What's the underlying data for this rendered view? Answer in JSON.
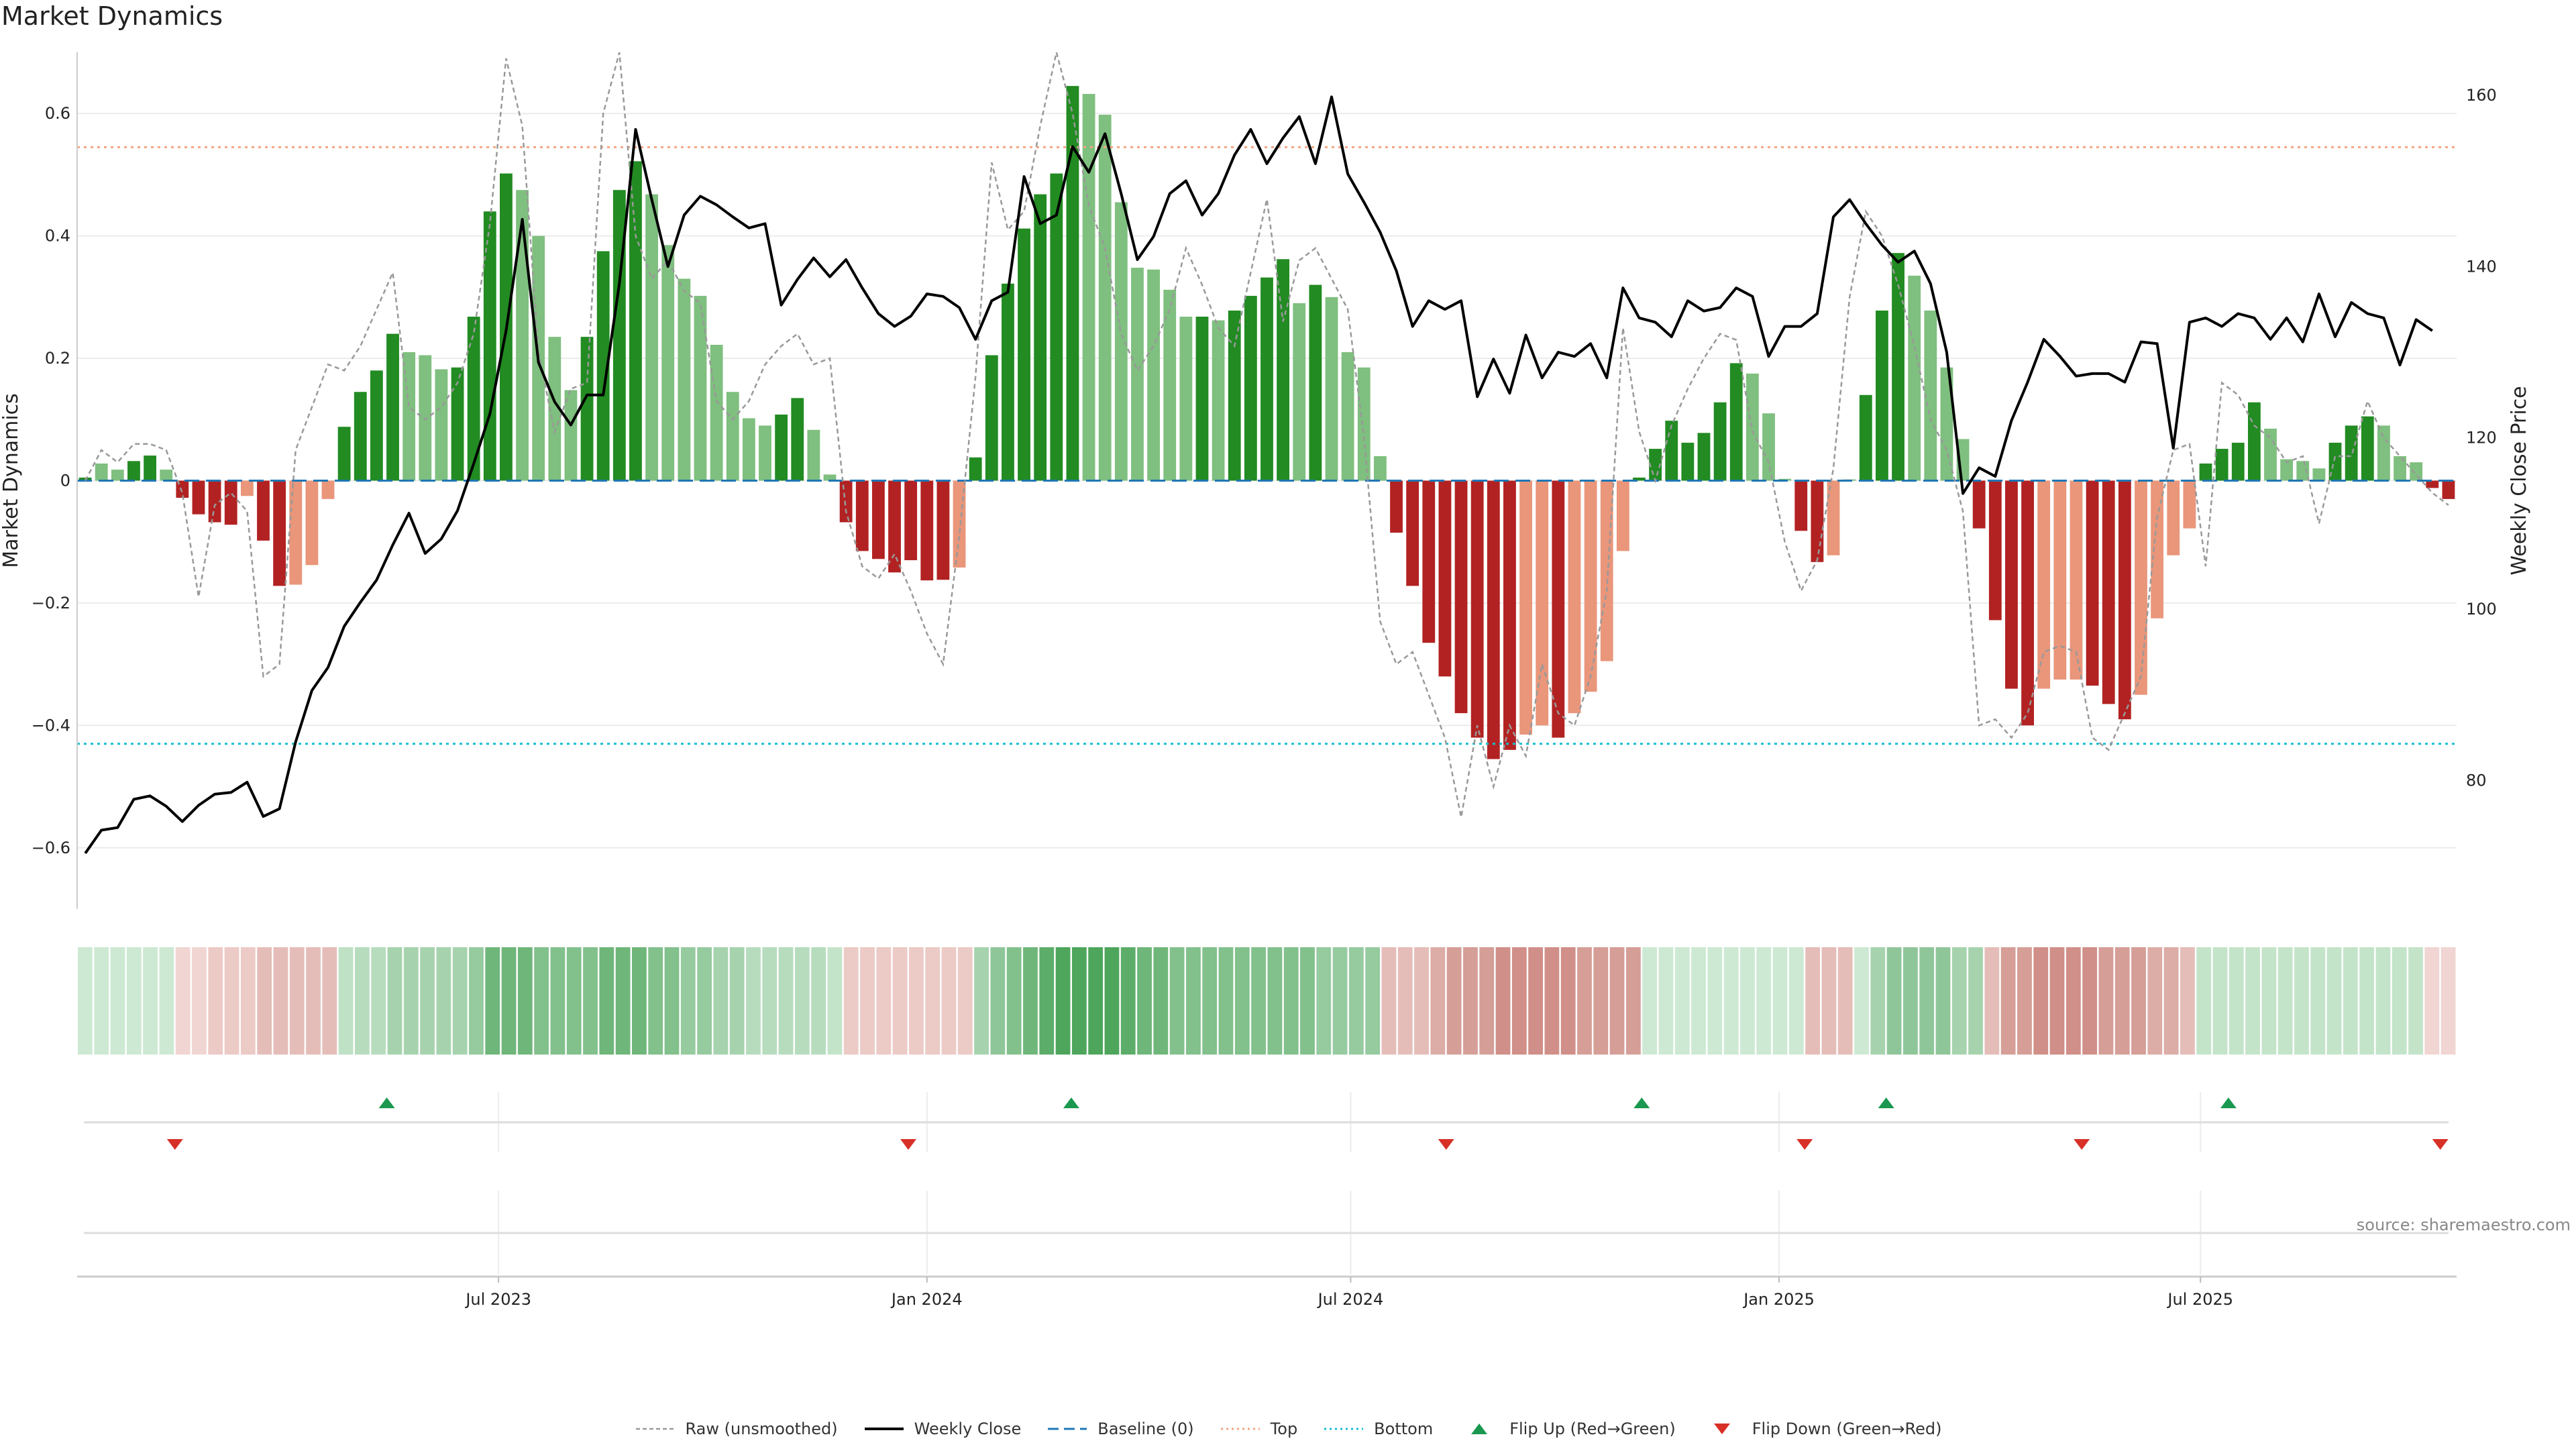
{
  "title": "Market Dynamics",
  "source_text": "source: sharemaestro.com",
  "chart_data": {
    "type": "bar",
    "title": "Market Dynamics",
    "ylabel": "Market Dynamics",
    "y2label": "Weekly Close Price",
    "ylim": [
      -0.7,
      0.7
    ],
    "y2lim": [
      65,
      165
    ],
    "y_ticks": [
      "0.6",
      "0.4",
      "0.2",
      "0",
      "−0.2",
      "−0.4",
      "−0.6"
    ],
    "y_tick_values": [
      0.6,
      0.4,
      0.2,
      0,
      -0.2,
      -0.4,
      -0.6
    ],
    "y2_ticks": [
      "160",
      "140",
      "120",
      "100",
      "80"
    ],
    "y2_tick_values": [
      160,
      140,
      120,
      100,
      80
    ],
    "x_ticks": [
      "Jul 2023",
      "Jan 2024",
      "Jul 2024",
      "Jan 2025",
      "Jul 2025"
    ],
    "x_tick_dates": [
      "2023-07-01",
      "2024-01-01",
      "2024-07-01",
      "2025-01-01",
      "2025-07-01"
    ],
    "x_start": "2023-01-01",
    "x_end": "2025-10-19",
    "top_threshold": 0.545,
    "bottom_threshold": -0.43,
    "grid": true,
    "legend_position": "bottom-center",
    "colors": {
      "strong_up": "#228b22",
      "weak_up": "#7fbf7f",
      "strong_down": "#b22222",
      "weak_down": "#e9967a",
      "close": "#000000",
      "raw": "#999999",
      "baseline": "#1f77b4",
      "top": "#f4a582",
      "bottom": "#17becf",
      "flip_up": "#1a9850",
      "flip_down": "#d73027"
    },
    "dynamics": [
      0.005,
      0.028,
      0.018,
      0.032,
      0.041,
      0.018,
      -0.028,
      -0.055,
      -0.068,
      -0.072,
      -0.025,
      -0.098,
      -0.172,
      -0.17,
      -0.138,
      -0.03,
      0.088,
      0.145,
      0.18,
      0.24,
      0.21,
      0.205,
      0.182,
      0.185,
      0.268,
      0.44,
      0.502,
      0.475,
      0.4,
      0.235,
      0.148,
      0.235,
      0.375,
      0.475,
      0.522,
      0.468,
      0.385,
      0.33,
      0.302,
      0.222,
      0.145,
      0.102,
      0.09,
      0.108,
      0.135,
      0.083,
      0.01,
      -0.068,
      -0.115,
      -0.128,
      -0.15,
      -0.13,
      -0.163,
      -0.162,
      -0.142,
      0.038,
      0.205,
      0.322,
      0.412,
      0.468,
      0.502,
      0.645,
      0.632,
      0.598,
      0.455,
      0.348,
      0.345,
      0.312,
      0.268,
      0.268,
      0.262,
      0.278,
      0.302,
      0.332,
      0.362,
      0.29,
      0.32,
      0.3,
      0.21,
      0.185,
      0.04,
      -0.085,
      -0.172,
      -0.265,
      -0.32,
      -0.38,
      -0.42,
      -0.455,
      -0.44,
      -0.415,
      -0.4,
      -0.42,
      -0.38,
      -0.345,
      -0.295,
      -0.115,
      0.005,
      0.052,
      0.098,
      0.062,
      0.078,
      0.128,
      0.192,
      0.175,
      0.11,
      0.003,
      -0.082,
      -0.133,
      -0.122,
      0.002,
      0.14,
      0.278,
      0.372,
      0.335,
      0.278,
      0.185,
      0.068,
      -0.078,
      -0.228,
      -0.34,
      -0.4,
      -0.34,
      -0.325,
      -0.325,
      -0.335,
      -0.365,
      -0.39,
      -0.35,
      -0.225,
      -0.122,
      -0.078,
      0.028,
      0.052,
      0.062,
      0.128,
      0.085,
      0.035,
      0.032,
      0.02,
      0.062,
      0.09,
      0.105,
      0.09,
      0.04,
      0.03,
      -0.012,
      -0.03
    ],
    "dynamics_strength": [
      "S",
      "W",
      "W",
      "S",
      "S",
      "W",
      "S",
      "S",
      "S",
      "S",
      "W",
      "S",
      "S",
      "W",
      "W",
      "W",
      "S",
      "S",
      "S",
      "S",
      "W",
      "W",
      "W",
      "S",
      "S",
      "S",
      "S",
      "W",
      "W",
      "W",
      "W",
      "S",
      "S",
      "S",
      "S",
      "W",
      "W",
      "W",
      "W",
      "W",
      "W",
      "W",
      "W",
      "S",
      "S",
      "W",
      "W",
      "S",
      "S",
      "S",
      "S",
      "S",
      "S",
      "S",
      "W",
      "S",
      "S",
      "S",
      "S",
      "S",
      "S",
      "S",
      "W",
      "W",
      "W",
      "W",
      "W",
      "W",
      "W",
      "S",
      "W",
      "S",
      "S",
      "S",
      "S",
      "W",
      "S",
      "W",
      "W",
      "W",
      "W",
      "S",
      "S",
      "S",
      "S",
      "S",
      "S",
      "S",
      "S",
      "W",
      "W",
      "S",
      "W",
      "W",
      "W",
      "W",
      "S",
      "S",
      "S",
      "S",
      "S",
      "S",
      "S",
      "W",
      "W",
      "W",
      "S",
      "S",
      "W",
      "W",
      "S",
      "S",
      "S",
      "W",
      "W",
      "W",
      "W",
      "S",
      "S",
      "S",
      "S",
      "W",
      "W",
      "W",
      "S",
      "S",
      "S",
      "W",
      "W",
      "W",
      "W",
      "S",
      "S",
      "S",
      "S",
      "W",
      "W",
      "W",
      "W",
      "S",
      "S",
      "S",
      "W",
      "W",
      "W",
      "S",
      "S"
    ],
    "close": [
      71.5,
      74.2,
      74.5,
      77.8,
      78.2,
      77.0,
      75.2,
      77.1,
      78.4,
      78.6,
      79.8,
      75.8,
      76.7,
      84.5,
      90.5,
      93.2,
      98.0,
      100.8,
      103.4,
      107.5,
      111.2,
      106.5,
      108.2,
      111.5,
      117.0,
      122.8,
      132.5,
      145.5,
      128.8,
      124.2,
      121.5,
      125.0,
      125.0,
      138.0,
      156.0,
      147.8,
      140.0,
      146.0,
      148.2,
      147.2,
      145.8,
      144.5,
      145.0,
      135.5,
      138.5,
      141.0,
      138.8,
      140.8,
      137.5,
      134.5,
      133.0,
      134.2,
      136.8,
      136.5,
      135.2,
      131.5,
      136.0,
      137.0,
      150.5,
      145.0,
      146.0,
      154.0,
      151.0,
      155.5,
      148.5,
      140.8,
      143.5,
      148.5,
      150.0,
      146.0,
      148.5,
      153.0,
      156.0,
      152.0,
      155.0,
      157.5,
      152.0,
      159.8,
      150.8,
      147.5,
      144.0,
      139.5,
      133.0,
      136.0,
      135.0,
      136.0,
      124.8,
      129.2,
      125.2,
      132.0,
      127.0,
      130.0,
      129.5,
      131.0,
      127.0,
      137.5,
      134.0,
      133.5,
      131.8,
      136.0,
      134.8,
      135.2,
      137.5,
      136.5,
      129.5,
      133.0,
      133.0,
      134.5,
      145.8,
      147.8,
      145.0,
      142.5,
      140.5,
      141.8,
      138.0,
      130.0,
      113.5,
      116.5,
      115.5,
      122.0,
      126.5,
      131.5,
      129.5,
      127.2,
      127.5,
      127.5,
      126.5,
      131.2,
      131.0,
      118.8,
      133.5,
      134.0,
      133.0,
      134.5,
      134.0,
      131.5,
      134.0,
      131.2,
      136.8,
      131.8,
      135.8,
      134.5,
      134.0,
      128.5,
      133.8,
      132.5
    ],
    "raw": [
      0.0,
      0.05,
      0.03,
      0.06,
      0.06,
      0.05,
      -0.02,
      -0.19,
      -0.04,
      -0.02,
      -0.05,
      -0.32,
      -0.3,
      0.05,
      0.12,
      0.19,
      0.18,
      0.22,
      0.28,
      0.34,
      0.12,
      0.1,
      0.12,
      0.16,
      0.24,
      0.42,
      0.69,
      0.58,
      0.21,
      0.08,
      0.15,
      0.16,
      0.6,
      0.7,
      0.4,
      0.33,
      0.36,
      0.31,
      0.29,
      0.13,
      0.1,
      0.13,
      0.19,
      0.22,
      0.24,
      0.19,
      0.2,
      -0.05,
      -0.14,
      -0.16,
      -0.12,
      -0.18,
      -0.25,
      -0.3,
      -0.09,
      0.17,
      0.52,
      0.41,
      0.44,
      0.58,
      0.7,
      0.6,
      0.45,
      0.38,
      0.24,
      0.18,
      0.22,
      0.28,
      0.38,
      0.32,
      0.25,
      0.22,
      0.34,
      0.46,
      0.26,
      0.36,
      0.38,
      0.33,
      0.28,
      0.07,
      -0.23,
      -0.3,
      -0.28,
      -0.35,
      -0.42,
      -0.55,
      -0.4,
      -0.5,
      -0.4,
      -0.45,
      -0.3,
      -0.38,
      -0.4,
      -0.32,
      -0.18,
      0.25,
      0.08,
      0.0,
      0.09,
      0.15,
      0.2,
      0.24,
      0.23,
      0.08,
      0.03,
      -0.1,
      -0.18,
      -0.13,
      0.02,
      0.3,
      0.44,
      0.4,
      0.32,
      0.22,
      0.1,
      0.05,
      -0.05,
      -0.4,
      -0.39,
      -0.42,
      -0.38,
      -0.28,
      -0.27,
      -0.28,
      -0.42,
      -0.44,
      -0.38,
      -0.32,
      -0.06,
      0.05,
      0.06,
      -0.14,
      0.16,
      0.14,
      0.09,
      0.07,
      0.03,
      0.04,
      -0.07,
      0.04,
      0.04,
      0.13,
      0.07,
      0.04,
      0.01,
      -0.02,
      -0.04
    ]
  },
  "heat_strip": {
    "colors": [
      "#cde9d3",
      "#cde9d3",
      "#cde9d3",
      "#cde9d3",
      "#cde9d3",
      "#cde9d3",
      "#f0d5d2",
      "#f0d5d2",
      "#eccac6",
      "#eccac6",
      "#eccac6",
      "#e5bdb8",
      "#e5bdb8",
      "#e5bdb8",
      "#e5bdb8",
      "#e5bdb8",
      "#bfe1c5",
      "#b6dcbd",
      "#b6dcbd",
      "#a6d3ae",
      "#a6d3ae",
      "#a6d3ae",
      "#a6d3ae",
      "#a6d3ae",
      "#96ca9f",
      "#6fb67a",
      "#6fb67a",
      "#6fb67a",
      "#82c08c",
      "#82c08c",
      "#82c08c",
      "#82c08c",
      "#6fb67a",
      "#6fb67a",
      "#6fb67a",
      "#82c08c",
      "#82c08c",
      "#96ca9f",
      "#96ca9f",
      "#a6d3ae",
      "#a6d3ae",
      "#b6dcbd",
      "#b6dcbd",
      "#b6dcbd",
      "#b6dcbd",
      "#b6dcbd",
      "#c4e4ca",
      "#eccac6",
      "#eccac6",
      "#eccac6",
      "#eccac6",
      "#eccac6",
      "#eccac6",
      "#eccac6",
      "#eccac6",
      "#a6d3ae",
      "#8fc699",
      "#82c08c",
      "#6fb67a",
      "#5cad69",
      "#4ea65c",
      "#4ea65c",
      "#4ea65c",
      "#4ea65c",
      "#5cad69",
      "#6fb67a",
      "#6fb67a",
      "#82c08c",
      "#82c08c",
      "#82c08c",
      "#82c08c",
      "#82c08c",
      "#82c08c",
      "#82c08c",
      "#82c08c",
      "#82c08c",
      "#96ca9f",
      "#96ca9f",
      "#96ca9f",
      "#96ca9f",
      "#e5bdb8",
      "#e5bdb8",
      "#e5bdb8",
      "#dcaca6",
      "#d59e97",
      "#d59e97",
      "#d59e97",
      "#d08f88",
      "#d08f88",
      "#d08f88",
      "#d08f88",
      "#d08f88",
      "#d59e97",
      "#d59e97",
      "#d59e97",
      "#d59e97",
      "#cde9d3",
      "#cde9d3",
      "#cde9d3",
      "#cde9d3",
      "#cde9d3",
      "#cde9d3",
      "#cde9d3",
      "#cde9d3",
      "#cde9d3",
      "#cde9d3",
      "#e5bdb8",
      "#e5bdb8",
      "#e5bdb8",
      "#cde9d3",
      "#a6d3ae",
      "#8fc699",
      "#8fc699",
      "#8fc699",
      "#8fc699",
      "#a6d3ae",
      "#a6d3ae",
      "#e5bdb8",
      "#d59e97",
      "#d59e97",
      "#d08f88",
      "#d08f88",
      "#d08f88",
      "#d08f88",
      "#d59e97",
      "#d59e97",
      "#d59e97",
      "#dcaca6",
      "#dcaca6",
      "#e5bdb8",
      "#c4e4ca",
      "#c4e4ca",
      "#c4e4ca",
      "#c4e4ca",
      "#c4e4ca",
      "#c4e4ca",
      "#c4e4ca",
      "#c4e4ca",
      "#c4e4ca",
      "#c4e4ca",
      "#c4e4ca",
      "#c4e4ca",
      "#c4e4ca",
      "#c4e4ca",
      "#f0d5d2",
      "#f0d5d2"
    ]
  },
  "flips": {
    "up_dates": [
      "2023-05-14",
      "2024-03-03",
      "2024-11-03",
      "2025-02-16",
      "2025-07-13"
    ],
    "down_dates": [
      "2023-02-12",
      "2023-12-24",
      "2024-08-11",
      "2025-01-12",
      "2025-05-11",
      "2025-10-12"
    ]
  },
  "legend": [
    {
      "label": "Raw (unsmoothed)",
      "kind": "raw"
    },
    {
      "label": "Weekly Close",
      "kind": "close"
    },
    {
      "label": "Baseline (0)",
      "kind": "baseline"
    },
    {
      "label": "Top",
      "kind": "top"
    },
    {
      "label": "Bottom",
      "kind": "bottom"
    },
    {
      "label": "Flip Up (Red→Green)",
      "kind": "flip_up"
    },
    {
      "label": "Flip Down (Green→Red)",
      "kind": "flip_down"
    }
  ]
}
